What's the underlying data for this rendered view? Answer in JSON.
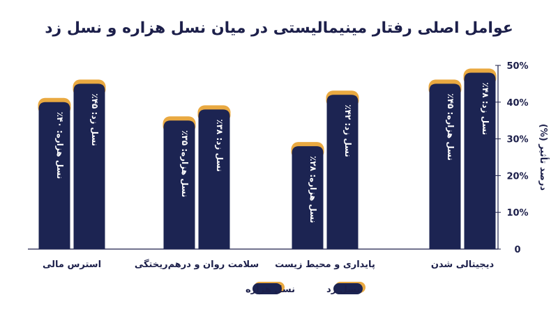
{
  "chart_data": {
    "type": "bar",
    "title": "عوامل اصلی رفتار مینیمالیستی در میان نسل هزاره و نسل زد",
    "ylabel": "درصد تأثیر (%)",
    "ylim": [
      0,
      50
    ],
    "yticks": [
      "0",
      "10%",
      "20%",
      "30%",
      "40%",
      "50%"
    ],
    "categories": [
      "دیجیتالی شدن",
      "پایداری و محیط زیست",
      "سلامت روان و درهم‌ریختگی",
      "استرس مالی"
    ],
    "series": [
      {
        "name": "نسل زد",
        "values": [
          48,
          42,
          38,
          45
        ],
        "labels": [
          "نسل زد: ۴۸٪",
          "نسل زد: ۴۲٪",
          "نسل زد: ۳۸٪",
          "نسل زد: ۴۵٪"
        ],
        "color": "#1c2452",
        "accent": "#e9a941"
      },
      {
        "name": "نسل هزاره",
        "values": [
          45,
          28,
          35,
          40
        ],
        "labels": [
          "نسل هزاره: ۴۵٪",
          "نسل هزاره: ۲۸٪",
          "نسل هزاره: ۳۵٪",
          "نسل هزاره: ۴۰٪"
        ],
        "color": "#1c2452",
        "accent": "#e9a941"
      }
    ],
    "legend": [
      "نسل زد",
      "نسل هزاره"
    ],
    "legend_position": "bottom",
    "grid": false,
    "axis_position": "right"
  }
}
